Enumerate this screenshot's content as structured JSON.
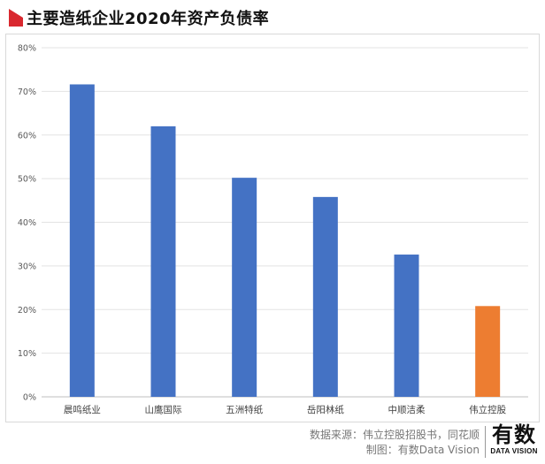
{
  "header": {
    "title": "主要造纸企业2020年资产负债率",
    "accent_color": "#d9282f",
    "accent_icon": "red-triangle-icon"
  },
  "chart_data": {
    "type": "bar",
    "title": "主要造纸企业2020年资产负债率",
    "categories": [
      "晨鸣纸业",
      "山鹰国际",
      "五洲特纸",
      "岳阳林纸",
      "中顺洁柔",
      "伟立控股"
    ],
    "values": [
      71.6,
      62.0,
      50.2,
      45.8,
      32.6,
      20.8
    ],
    "unit": "%",
    "ylim": [
      0,
      80
    ],
    "yticks": [
      0,
      10,
      20,
      30,
      40,
      50,
      60,
      70,
      80
    ],
    "ytick_labels": [
      "0%",
      "10%",
      "20%",
      "30%",
      "40%",
      "50%",
      "60%",
      "70%",
      "80%"
    ],
    "colors": [
      "#4472c4",
      "#4472c4",
      "#4472c4",
      "#4472c4",
      "#4472c4",
      "#ed7d31"
    ],
    "grid": true,
    "legend": "none"
  },
  "footer": {
    "source_line1": "数据来源：伟立控股招股书，同花顺",
    "source_line2": "制图：有数Data Vision",
    "brand_main": "有数",
    "brand_sub": "DATA VISION"
  }
}
